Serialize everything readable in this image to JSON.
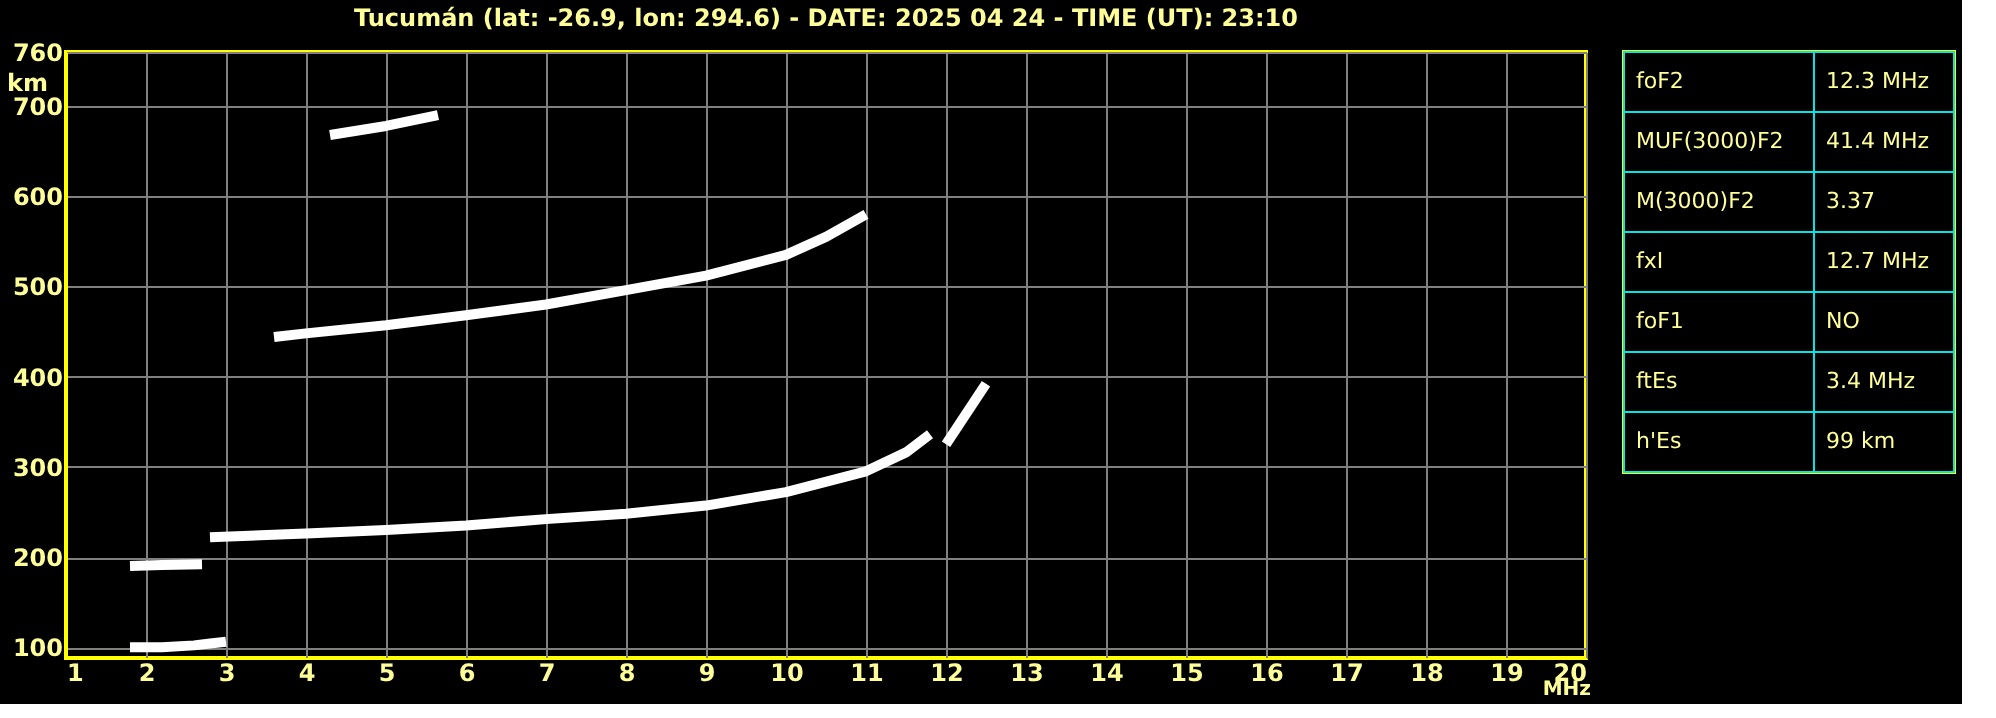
{
  "chart_data": [
    {
      "type": "line",
      "title": "Tucumán (lat: -26.9, lon: 294.6) - DATE: 2025 04 24 - TIME (UT): 23:10",
      "xlabel": "MHz",
      "ylabel": "km",
      "xlim": [
        1,
        20
      ],
      "ylim": [
        88,
        760
      ],
      "xticks": [
        1,
        2,
        3,
        4,
        5,
        6,
        7,
        8,
        9,
        10,
        11,
        12,
        13,
        14,
        15,
        16,
        17,
        18,
        19,
        20
      ],
      "yticks": [
        100,
        200,
        300,
        400,
        500,
        600,
        700,
        760
      ],
      "grid": true,
      "line_style": "solid",
      "marker": "none",
      "series": [
        {
          "color": "#ffffff",
          "x": [
            1.8,
            2.2,
            2.6,
            2.8,
            3.0
          ],
          "values": [
            100,
            100,
            102,
            104,
            106
          ]
        },
        {
          "color": "#ffffff",
          "x": [
            1.8,
            2.2,
            2.7
          ],
          "values": [
            190,
            191,
            192
          ]
        },
        {
          "color": "#ffffff",
          "x": [
            2.8,
            4,
            5,
            6,
            7,
            8,
            9,
            10,
            11,
            11.5,
            11.8
          ],
          "values": [
            222,
            226,
            230,
            235,
            242,
            248,
            257,
            272,
            295,
            316,
            336
          ]
        },
        {
          "color": "#ffffff",
          "x": [
            12.0,
            12.5
          ],
          "values": [
            325,
            392
          ]
        },
        {
          "color": "#ffffff",
          "x": [
            3.6,
            4,
            5,
            6,
            7,
            8,
            9,
            10,
            10.5,
            11
          ],
          "values": [
            444,
            448,
            457,
            468,
            480,
            496,
            512,
            535,
            555,
            580
          ]
        },
        {
          "color": "#ffffff",
          "x": [
            4.3,
            5.0,
            5.65
          ],
          "values": [
            668,
            678,
            690
          ]
        }
      ]
    },
    {
      "type": "other",
      "annotations": [
        "foF2",
        "12.3 MHz",
        "MUF(3000)F2",
        "41.4 MHz",
        "M(3000)F2",
        "3.37",
        "fxI",
        "12.7 MHz",
        "foF1",
        "NO",
        "ftEs",
        "3.4 MHz",
        "h'Es",
        "99 km"
      ]
    }
  ]
}
